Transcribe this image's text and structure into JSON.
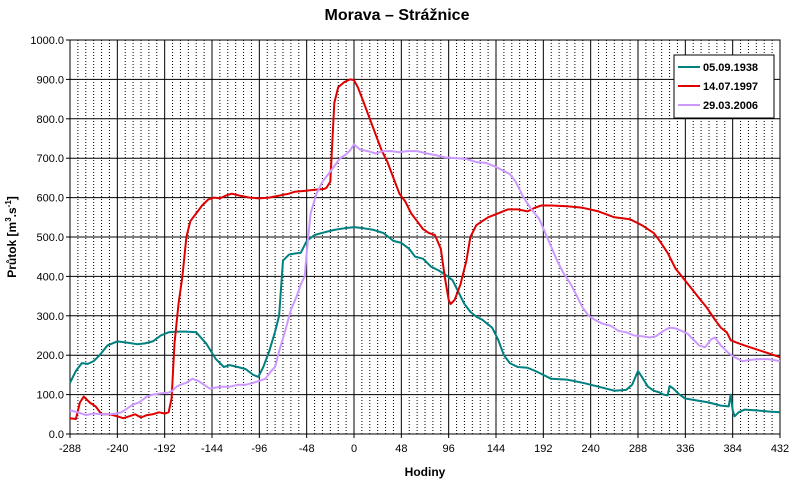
{
  "chart_data": {
    "type": "line",
    "title": "Morava – Strážnice",
    "xlabel": "Hodiny",
    "ylabel_main": "Průtok [m",
    "ylabel_sup1": "3",
    "ylabel_mid": ".s",
    "ylabel_sup2": "-1",
    "ylabel_end": "]",
    "xlim": [
      -288,
      432
    ],
    "ylim": [
      0,
      1000
    ],
    "x_ticks": [
      "-288",
      "-240",
      "-192",
      "-144",
      "-96",
      "-48",
      "0",
      "48",
      "96",
      "144",
      "192",
      "240",
      "288",
      "336",
      "384",
      "432"
    ],
    "y_ticks": [
      "0.0",
      "100.0",
      "200.0",
      "300.0",
      "400.0",
      "500.0",
      "600.0",
      "700.0",
      "800.0",
      "900.0",
      "1000.0"
    ],
    "grid": true,
    "legend_position": "top-right",
    "series": [
      {
        "name": "05.09.1938",
        "color": "#008080",
        "points": [
          [
            -288,
            130
          ],
          [
            -282,
            160
          ],
          [
            -276,
            180
          ],
          [
            -270,
            178
          ],
          [
            -264,
            185
          ],
          [
            -258,
            200
          ],
          [
            -250,
            225
          ],
          [
            -240,
            235
          ],
          [
            -230,
            232
          ],
          [
            -220,
            228
          ],
          [
            -212,
            230
          ],
          [
            -204,
            235
          ],
          [
            -196,
            250
          ],
          [
            -188,
            258
          ],
          [
            -180,
            260
          ],
          [
            -170,
            260
          ],
          [
            -160,
            258
          ],
          [
            -150,
            230
          ],
          [
            -140,
            190
          ],
          [
            -132,
            170
          ],
          [
            -126,
            175
          ],
          [
            -118,
            170
          ],
          [
            -110,
            165
          ],
          [
            -102,
            150
          ],
          [
            -97,
            145
          ],
          [
            -92,
            170
          ],
          [
            -86,
            210
          ],
          [
            -80,
            260
          ],
          [
            -76,
            300
          ],
          [
            -72,
            440
          ],
          [
            -66,
            455
          ],
          [
            -60,
            458
          ],
          [
            -54,
            460
          ],
          [
            -48,
            490
          ],
          [
            -40,
            505
          ],
          [
            -30,
            512
          ],
          [
            -20,
            518
          ],
          [
            -10,
            522
          ],
          [
            0,
            525
          ],
          [
            10,
            522
          ],
          [
            20,
            518
          ],
          [
            30,
            510
          ],
          [
            40,
            490
          ],
          [
            48,
            485
          ],
          [
            56,
            470
          ],
          [
            62,
            450
          ],
          [
            70,
            445
          ],
          [
            78,
            425
          ],
          [
            86,
            415
          ],
          [
            94,
            402
          ],
          [
            100,
            390
          ],
          [
            106,
            360
          ],
          [
            112,
            330
          ],
          [
            118,
            310
          ],
          [
            124,
            298
          ],
          [
            130,
            290
          ],
          [
            140,
            270
          ],
          [
            146,
            240
          ],
          [
            152,
            200
          ],
          [
            158,
            180
          ],
          [
            166,
            170
          ],
          [
            176,
            168
          ],
          [
            184,
            160
          ],
          [
            192,
            150
          ],
          [
            200,
            140
          ],
          [
            216,
            138
          ],
          [
            232,
            130
          ],
          [
            248,
            120
          ],
          [
            264,
            110
          ],
          [
            276,
            112
          ],
          [
            282,
            125
          ],
          [
            288,
            160
          ],
          [
            292,
            145
          ],
          [
            298,
            120
          ],
          [
            304,
            110
          ],
          [
            310,
            105
          ],
          [
            314,
            100
          ],
          [
            318,
            98
          ],
          [
            320,
            122
          ],
          [
            324,
            115
          ],
          [
            330,
            100
          ],
          [
            336,
            90
          ],
          [
            348,
            85
          ],
          [
            360,
            80
          ],
          [
            372,
            72
          ],
          [
            380,
            70
          ],
          [
            382,
            100
          ],
          [
            384,
            60
          ],
          [
            386,
            45
          ],
          [
            390,
            55
          ],
          [
            396,
            62
          ],
          [
            408,
            60
          ],
          [
            420,
            57
          ],
          [
            432,
            55
          ]
        ]
      },
      {
        "name": "14.07.1997",
        "color": "#e00000",
        "points": [
          [
            -288,
            40
          ],
          [
            -282,
            38
          ],
          [
            -278,
            80
          ],
          [
            -274,
            95
          ],
          [
            -268,
            80
          ],
          [
            -262,
            70
          ],
          [
            -256,
            50
          ],
          [
            -248,
            50
          ],
          [
            -240,
            45
          ],
          [
            -234,
            40
          ],
          [
            -228,
            45
          ],
          [
            -222,
            50
          ],
          [
            -216,
            42
          ],
          [
            -210,
            48
          ],
          [
            -204,
            50
          ],
          [
            -198,
            55
          ],
          [
            -192,
            52
          ],
          [
            -188,
            55
          ],
          [
            -185,
            90
          ],
          [
            -182,
            230
          ],
          [
            -178,
            330
          ],
          [
            -174,
            400
          ],
          [
            -170,
            500
          ],
          [
            -166,
            540
          ],
          [
            -160,
            560
          ],
          [
            -154,
            580
          ],
          [
            -148,
            595
          ],
          [
            -142,
            600
          ],
          [
            -136,
            598
          ],
          [
            -130,
            605
          ],
          [
            -124,
            610
          ],
          [
            -116,
            605
          ],
          [
            -106,
            600
          ],
          [
            -96,
            598
          ],
          [
            -86,
            600
          ],
          [
            -76,
            605
          ],
          [
            -66,
            610
          ],
          [
            -60,
            615
          ],
          [
            -50,
            617
          ],
          [
            -40,
            620
          ],
          [
            -30,
            622
          ],
          [
            -28,
            625
          ],
          [
            -24,
            640
          ],
          [
            -20,
            840
          ],
          [
            -16,
            880
          ],
          [
            -10,
            893
          ],
          [
            -4,
            900
          ],
          [
            0,
            898
          ],
          [
            4,
            880
          ],
          [
            10,
            840
          ],
          [
            16,
            800
          ],
          [
            22,
            760
          ],
          [
            28,
            720
          ],
          [
            34,
            690
          ],
          [
            40,
            650
          ],
          [
            46,
            610
          ],
          [
            52,
            590
          ],
          [
            58,
            560
          ],
          [
            64,
            540
          ],
          [
            70,
            520
          ],
          [
            76,
            510
          ],
          [
            82,
            505
          ],
          [
            88,
            470
          ],
          [
            92,
            400
          ],
          [
            96,
            340
          ],
          [
            98,
            330
          ],
          [
            102,
            340
          ],
          [
            108,
            380
          ],
          [
            114,
            440
          ],
          [
            118,
            500
          ],
          [
            124,
            530
          ],
          [
            130,
            540
          ],
          [
            136,
            550
          ],
          [
            146,
            560
          ],
          [
            156,
            570
          ],
          [
            166,
            570
          ],
          [
            176,
            565
          ],
          [
            184,
            575
          ],
          [
            190,
            580
          ],
          [
            200,
            580
          ],
          [
            216,
            578
          ],
          [
            232,
            574
          ],
          [
            248,
            565
          ],
          [
            264,
            550
          ],
          [
            280,
            545
          ],
          [
            292,
            530
          ],
          [
            304,
            510
          ],
          [
            310,
            490
          ],
          [
            318,
            460
          ],
          [
            326,
            420
          ],
          [
            334,
            395
          ],
          [
            342,
            370
          ],
          [
            350,
            345
          ],
          [
            358,
            320
          ],
          [
            366,
            290
          ],
          [
            372,
            270
          ],
          [
            378,
            258
          ],
          [
            382,
            238
          ],
          [
            388,
            232
          ],
          [
            396,
            225
          ],
          [
            408,
            215
          ],
          [
            420,
            205
          ],
          [
            432,
            195
          ]
        ]
      },
      {
        "name": "29.03.2006",
        "color": "#cc99ff",
        "points": [
          [
            -288,
            60
          ],
          [
            -280,
            55
          ],
          [
            -272,
            48
          ],
          [
            -264,
            52
          ],
          [
            -256,
            50
          ],
          [
            -248,
            50
          ],
          [
            -240,
            52
          ],
          [
            -236,
            55
          ],
          [
            -230,
            65
          ],
          [
            -224,
            75
          ],
          [
            -218,
            80
          ],
          [
            -210,
            95
          ],
          [
            -204,
            100
          ],
          [
            -196,
            103
          ],
          [
            -188,
            105
          ],
          [
            -184,
            110
          ],
          [
            -180,
            120
          ],
          [
            -176,
            125
          ],
          [
            -170,
            130
          ],
          [
            -164,
            140
          ],
          [
            -158,
            135
          ],
          [
            -152,
            125
          ],
          [
            -146,
            115
          ],
          [
            -140,
            118
          ],
          [
            -134,
            120
          ],
          [
            -126,
            120
          ],
          [
            -118,
            125
          ],
          [
            -110,
            125
          ],
          [
            -102,
            130
          ],
          [
            -96,
            135
          ],
          [
            -90,
            140
          ],
          [
            -84,
            160
          ],
          [
            -80,
            170
          ],
          [
            -76,
            210
          ],
          [
            -70,
            260
          ],
          [
            -64,
            315
          ],
          [
            -58,
            350
          ],
          [
            -54,
            380
          ],
          [
            -50,
            400
          ],
          [
            -48,
            460
          ],
          [
            -44,
            560
          ],
          [
            -38,
            610
          ],
          [
            -32,
            640
          ],
          [
            -26,
            660
          ],
          [
            -20,
            680
          ],
          [
            -14,
            700
          ],
          [
            -8,
            710
          ],
          [
            -4,
            720
          ],
          [
            0,
            735
          ],
          [
            6,
            722
          ],
          [
            14,
            718
          ],
          [
            22,
            712
          ],
          [
            30,
            718
          ],
          [
            38,
            718
          ],
          [
            46,
            715
          ],
          [
            54,
            718
          ],
          [
            64,
            718
          ],
          [
            74,
            712
          ],
          [
            82,
            708
          ],
          [
            92,
            702
          ],
          [
            104,
            700
          ],
          [
            114,
            698
          ],
          [
            124,
            690
          ],
          [
            134,
            688
          ],
          [
            144,
            678
          ],
          [
            150,
            670
          ],
          [
            158,
            660
          ],
          [
            164,
            640
          ],
          [
            172,
            600
          ],
          [
            180,
            570
          ],
          [
            188,
            545
          ],
          [
            194,
            510
          ],
          [
            200,
            475
          ],
          [
            206,
            440
          ],
          [
            212,
            410
          ],
          [
            220,
            380
          ],
          [
            226,
            350
          ],
          [
            232,
            320
          ],
          [
            238,
            300
          ],
          [
            244,
            290
          ],
          [
            252,
            280
          ],
          [
            260,
            275
          ],
          [
            268,
            262
          ],
          [
            276,
            258
          ],
          [
            284,
            250
          ],
          [
            292,
            248
          ],
          [
            300,
            245
          ],
          [
            306,
            248
          ],
          [
            314,
            262
          ],
          [
            320,
            270
          ],
          [
            326,
            268
          ],
          [
            332,
            262
          ],
          [
            338,
            255
          ],
          [
            344,
            240
          ],
          [
            350,
            225
          ],
          [
            356,
            220
          ],
          [
            362,
            240
          ],
          [
            366,
            245
          ],
          [
            372,
            225
          ],
          [
            380,
            205
          ],
          [
            386,
            195
          ],
          [
            394,
            185
          ],
          [
            402,
            188
          ],
          [
            410,
            190
          ],
          [
            420,
            190
          ],
          [
            432,
            185
          ]
        ]
      }
    ]
  }
}
